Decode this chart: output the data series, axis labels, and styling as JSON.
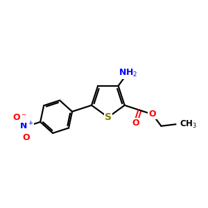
{
  "bg_color": "#ffffff",
  "bond_color": "#000000",
  "sulfur_color": "#808000",
  "nitrogen_color": "#0000ff",
  "oxygen_color": "#ff0000",
  "carbon_color": "#000000",
  "bond_width": 1.6,
  "font_size": 9,
  "fig_size": [
    3.0,
    3.0
  ],
  "dpi": 100,
  "xlim": [
    0,
    10
  ],
  "ylim": [
    0,
    10
  ]
}
